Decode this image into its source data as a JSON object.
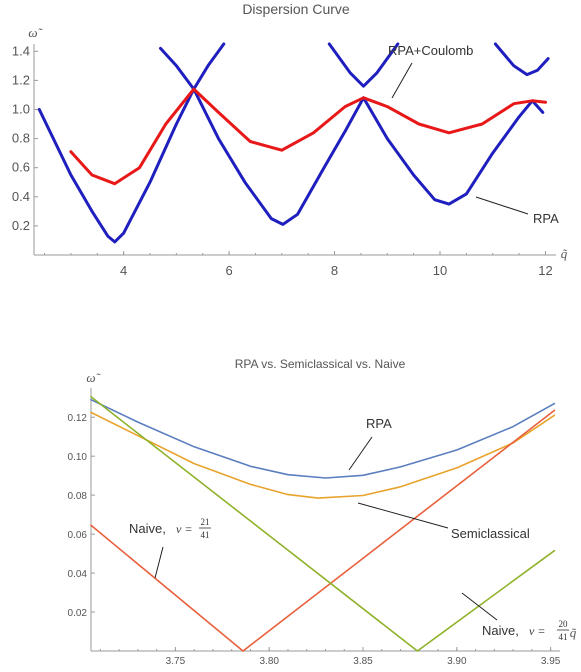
{
  "chart_data": [
    {
      "type": "line",
      "title": "Dispersion Curve",
      "xlabel": "q̃",
      "ylabel": "ω̃",
      "xlim": [
        2.3,
        12.2
      ],
      "ylim": [
        0.0,
        1.45
      ],
      "xticks": [
        4,
        6,
        8,
        10,
        12
      ],
      "yticks": [
        0.2,
        0.4,
        0.6,
        0.8,
        1.0,
        1.2,
        1.4
      ],
      "xtick_labels": [
        "4",
        "6",
        "8",
        "10",
        "12"
      ],
      "ytick_labels": [
        "0.2",
        "0.4",
        "0.6",
        "0.8",
        "1.0",
        "1.2",
        "1.4"
      ],
      "series": [
        {
          "name": "RPA",
          "color": "#1f1fbf",
          "segments": [
            [
              [
                2.4,
                1.0
              ],
              [
                3.0,
                0.55
              ],
              [
                3.4,
                0.3
              ],
              [
                3.7,
                0.13
              ],
              [
                3.83,
                0.09
              ],
              [
                4.0,
                0.15
              ],
              [
                4.5,
                0.5
              ],
              [
                5.0,
                0.9
              ],
              [
                5.33,
                1.14
              ]
            ],
            [
              [
                4.7,
                1.42
              ],
              [
                5.0,
                1.3
              ],
              [
                5.33,
                1.14
              ],
              [
                5.6,
                1.3
              ],
              [
                5.9,
                1.45
              ]
            ],
            [
              [
                5.33,
                1.14
              ],
              [
                5.8,
                0.8
              ],
              [
                6.3,
                0.5
              ],
              [
                6.8,
                0.25
              ],
              [
                7.02,
                0.21
              ],
              [
                7.3,
                0.28
              ],
              [
                7.8,
                0.6
              ],
              [
                8.2,
                0.85
              ],
              [
                8.55,
                1.08
              ]
            ],
            [
              [
                7.9,
                1.45
              ],
              [
                8.3,
                1.25
              ],
              [
                8.55,
                1.16
              ],
              [
                8.8,
                1.25
              ],
              [
                9.2,
                1.45
              ]
            ],
            [
              [
                8.55,
                1.08
              ],
              [
                9.0,
                0.8
              ],
              [
                9.5,
                0.55
              ],
              [
                9.9,
                0.38
              ],
              [
                10.17,
                0.35
              ],
              [
                10.5,
                0.42
              ],
              [
                11.0,
                0.7
              ],
              [
                11.5,
                0.95
              ],
              [
                11.75,
                1.06
              ],
              [
                11.95,
                0.98
              ]
            ],
            [
              [
                11.05,
                1.45
              ],
              [
                11.4,
                1.3
              ],
              [
                11.65,
                1.24
              ],
              [
                11.85,
                1.27
              ],
              [
                12.05,
                1.35
              ]
            ]
          ]
        },
        {
          "name": "RPA+Coulomb",
          "color": "#e81818",
          "segments": [
            [
              [
                3.0,
                0.71
              ],
              [
                3.4,
                0.55
              ],
              [
                3.83,
                0.49
              ],
              [
                4.3,
                0.6
              ],
              [
                4.8,
                0.9
              ],
              [
                5.33,
                1.14
              ],
              [
                5.8,
                0.98
              ],
              [
                6.4,
                0.78
              ],
              [
                7.0,
                0.72
              ],
              [
                7.6,
                0.84
              ],
              [
                8.2,
                1.02
              ],
              [
                8.55,
                1.08
              ],
              [
                9.0,
                1.02
              ],
              [
                9.6,
                0.9
              ],
              [
                10.17,
                0.84
              ],
              [
                10.8,
                0.9
              ],
              [
                11.4,
                1.04
              ],
              [
                11.75,
                1.06
              ],
              [
                12.0,
                1.05
              ]
            ]
          ]
        }
      ],
      "annotations": [
        "RPA+Coulomb",
        "RPA"
      ]
    },
    {
      "type": "line",
      "title": "RPA vs. Semiclassical vs. Naive",
      "xlabel": "q̃",
      "ylabel": "ω̃",
      "xlim": [
        3.705,
        3.955
      ],
      "ylim": [
        0.0,
        0.135
      ],
      "xticks": [
        3.75,
        3.8,
        3.85,
        3.9,
        3.95
      ],
      "yticks": [
        0.02,
        0.04,
        0.06,
        0.08,
        0.1,
        0.12
      ],
      "xtick_labels": [
        "3.75",
        "3.80",
        "3.85",
        "3.90",
        "3.95"
      ],
      "ytick_labels": [
        "0.02",
        "0.04",
        "0.06",
        "0.08",
        "0.10",
        "0.12"
      ],
      "series": [
        {
          "name": "RPA",
          "color": "#5a7ec0",
          "points": [
            [
              3.705,
              0.129
            ],
            [
              3.73,
              0.1175
            ],
            [
              3.76,
              0.1048
            ],
            [
              3.79,
              0.0948
            ],
            [
              3.81,
              0.0905
            ],
            [
              3.83,
              0.0888
            ],
            [
              3.85,
              0.0902
            ],
            [
              3.87,
              0.0945
            ],
            [
              3.9,
              0.1032
            ],
            [
              3.93,
              0.1152
            ],
            [
              3.952,
              0.127
            ]
          ]
        },
        {
          "name": "Semiclassical",
          "color": "#e8a32c",
          "points": [
            [
              3.705,
              0.1225
            ],
            [
              3.73,
              0.1105
            ],
            [
              3.76,
              0.0962
            ],
            [
              3.79,
              0.0855
            ],
            [
              3.81,
              0.0803
            ],
            [
              3.826,
              0.0785
            ],
            [
              3.85,
              0.0798
            ],
            [
              3.87,
              0.0843
            ],
            [
              3.9,
              0.094
            ],
            [
              3.93,
              0.1068
            ],
            [
              3.952,
              0.121
            ]
          ]
        },
        {
          "name": "Naive, ν = 21/41",
          "color": "#e8603c",
          "points": [
            [
              3.705,
              0.0645
            ],
            [
              3.786,
              0.0
            ],
            [
              3.952,
              0.1235
            ]
          ]
        },
        {
          "name": "Naive, ν = 20/41",
          "color": "#8fb22a",
          "points": [
            [
              3.705,
              0.1305
            ],
            [
              3.879,
              0.0
            ],
            [
              3.952,
              0.0515
            ]
          ]
        }
      ],
      "annotations": [
        "RPA",
        "Semiclassical",
        "Naive,",
        "ν =",
        "21",
        "41",
        "Naive,",
        "ν =",
        "20",
        "41"
      ]
    }
  ]
}
